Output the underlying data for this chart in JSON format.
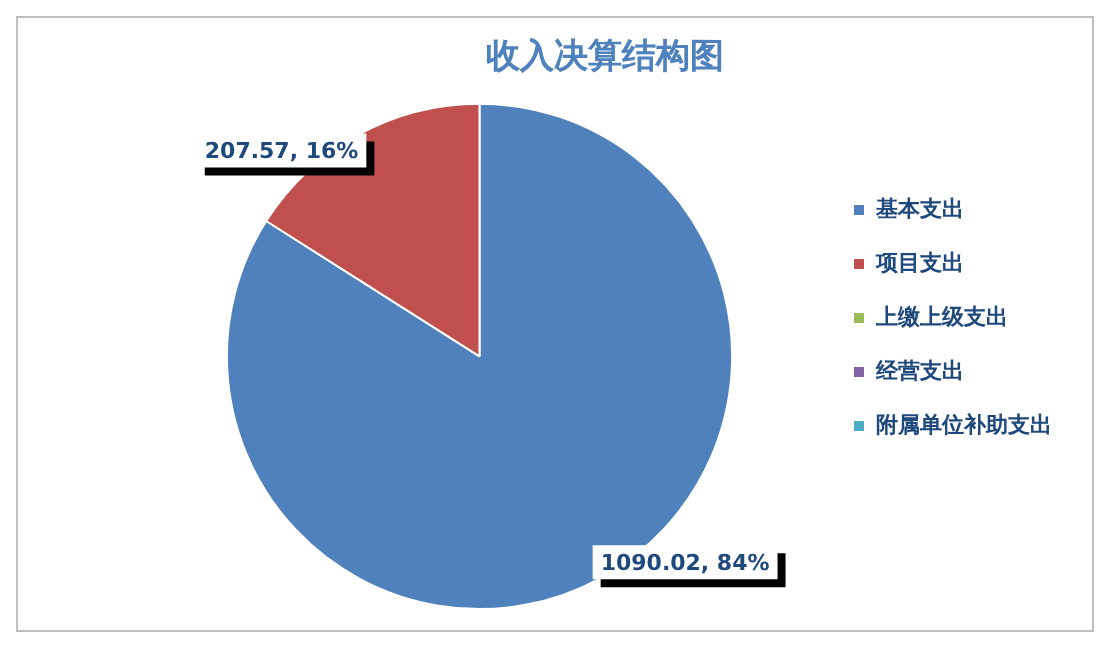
{
  "chart_data": {
    "type": "pie",
    "title": "收入决算结构图",
    "categories": [
      "基本支出",
      "项目支出",
      "上缴上级支出",
      "经营支出",
      "附属单位补助支出"
    ],
    "values": [
      1090.02,
      207.57,
      0,
      0,
      0
    ],
    "colors": [
      "#4f81bd",
      "#c0504d",
      "#9bbb59",
      "#8064a2",
      "#4bacc6"
    ],
    "value_labels": [
      "1090.02, 84%",
      "207.57, 16%",
      null,
      null,
      null
    ],
    "legend": "right"
  }
}
